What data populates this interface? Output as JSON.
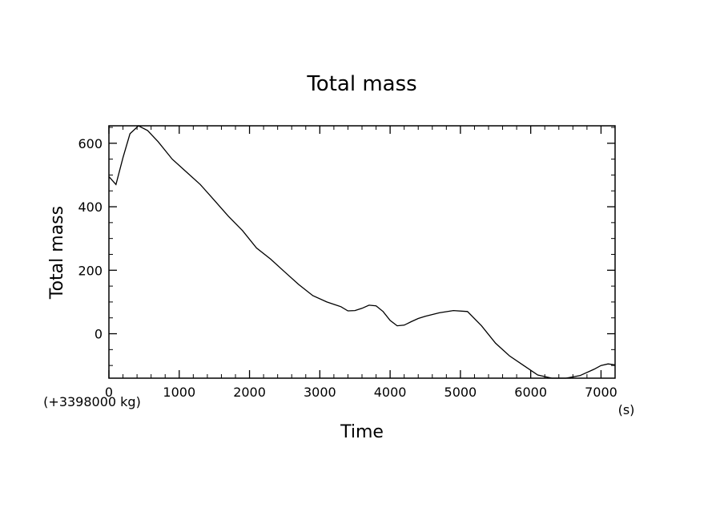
{
  "chart_data": {
    "type": "line",
    "title": "Total mass",
    "xlabel": "Time",
    "ylabel": "Total mass",
    "x_unit": "(s)",
    "y_offset_label": "(+3398000 kg)",
    "xlim": [
      0,
      7200
    ],
    "ylim": [
      -140,
      655
    ],
    "x_ticks": [
      0,
      1000,
      2000,
      3000,
      4000,
      5000,
      6000,
      7000
    ],
    "x_tick_labels": [
      "0",
      "1000",
      "2000",
      "3000",
      "4000",
      "5000",
      "6000",
      "7000"
    ],
    "y_ticks": [
      0,
      200,
      400,
      600
    ],
    "y_tick_labels": [
      "0",
      "200",
      "400",
      "600"
    ],
    "grid": false,
    "legend": "none",
    "series": [
      {
        "color": "#000000",
        "x": [
          0,
          100,
          200,
          300,
          420,
          550,
          700,
          900,
          1100,
          1300,
          1500,
          1700,
          1900,
          2100,
          2300,
          2500,
          2700,
          2900,
          3100,
          3300,
          3400,
          3500,
          3600,
          3700,
          3800,
          3900,
          4000,
          4100,
          4200,
          4300,
          4400,
          4500,
          4700,
          4900,
          5100,
          5300,
          5500,
          5700,
          5900,
          6100,
          6300,
          6500,
          6700,
          6900,
          7000,
          7100,
          7200
        ],
        "y": [
          495,
          470,
          555,
          630,
          655,
          640,
          605,
          550,
          510,
          470,
          420,
          370,
          325,
          270,
          235,
          195,
          155,
          120,
          100,
          85,
          72,
          73,
          80,
          90,
          88,
          70,
          42,
          25,
          27,
          38,
          48,
          55,
          66,
          73,
          70,
          25,
          -30,
          -70,
          -100,
          -130,
          -140,
          -140,
          -132,
          -112,
          -100,
          -95,
          -98
        ]
      }
    ]
  }
}
